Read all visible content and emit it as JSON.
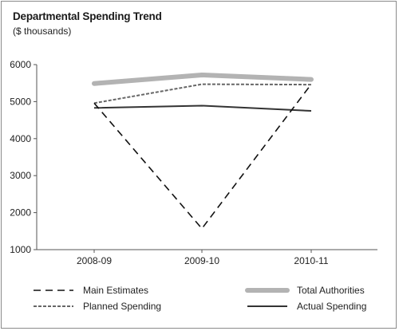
{
  "chart_data": {
    "type": "line",
    "title": "Departmental Spending Trend",
    "subtitle": "($ thousands)",
    "categories": [
      "2008-09",
      "2009-10",
      "2010-11"
    ],
    "ylim": [
      1000,
      6000
    ],
    "yticks": [
      1000,
      2000,
      3000,
      4000,
      5000,
      6000
    ],
    "grid": false,
    "legend_position": "bottom",
    "series": [
      {
        "name": "Main Estimates",
        "values": [
          4960,
          1570,
          5470
        ],
        "color": "#111111",
        "style": "long-dash"
      },
      {
        "name": "Planned Spending",
        "values": [
          4960,
          5470,
          5460
        ],
        "color": "#666666",
        "style": "short-dash"
      },
      {
        "name": "Total Authorities",
        "values": [
          5490,
          5720,
          5600
        ],
        "color": "#b3b3b3",
        "style": "thick"
      },
      {
        "name": "Actual Spending",
        "values": [
          4830,
          4890,
          4750
        ],
        "color": "#333333",
        "style": "solid"
      }
    ]
  }
}
